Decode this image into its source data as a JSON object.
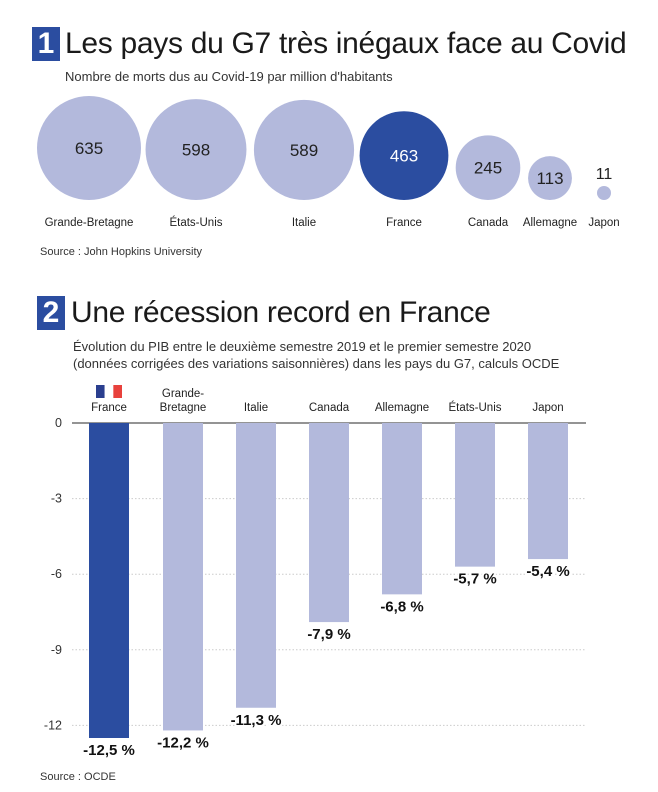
{
  "section1": {
    "number": "1",
    "title": "Les pays du G7 très inégaux face au Covid",
    "subtitle": "Nombre de morts dus au Covid-19 par million d'habitants",
    "source": "Source : John Hopkins University"
  },
  "section2": {
    "number": "2",
    "title": "Une récession record en France",
    "subtitle_line1": "Évolution du PIB entre le deuxième semestre 2019 et le premier semestre 2020",
    "subtitle_line2": "(données corrigées des variations saisonnières) dans les pays du G7, calculs OCDE",
    "source": "Source : OCDE"
  },
  "colors": {
    "highlight": "#2b4da0",
    "default": "#b3b9dc",
    "gridline": "#cccccc",
    "axis": "#555555",
    "flag_blue": "#2a3f8f",
    "flag_red": "#e8413c"
  },
  "chart_data": [
    {
      "type": "bubble",
      "title": "Les pays du G7 très inégaux face au Covid",
      "subtitle": "Nombre de morts dus au Covid-19 par million d'habitants",
      "categories": [
        "Grande-Bretagne",
        "États-Unis",
        "Italie",
        "France",
        "Canada",
        "Allemagne",
        "Japon"
      ],
      "values": [
        635,
        598,
        589,
        463,
        245,
        113,
        11
      ],
      "value_labels": [
        "635",
        "598",
        "589",
        "463",
        "245",
        "113",
        "11"
      ],
      "highlight": "France"
    },
    {
      "type": "bar",
      "title": "Une récession record en France",
      "categories": [
        "France",
        "Grande-Bretagne",
        "Italie",
        "Canada",
        "Allemagne",
        "États-Unis",
        "Japon"
      ],
      "category_labels": [
        [
          "France"
        ],
        [
          "Grande-",
          "Bretagne"
        ],
        [
          "Italie"
        ],
        [
          "Canada"
        ],
        [
          "Allemagne"
        ],
        [
          "États-Unis"
        ],
        [
          "Japon"
        ]
      ],
      "values": [
        -12.5,
        -12.2,
        -11.3,
        -7.9,
        -6.8,
        -5.7,
        -5.4
      ],
      "value_labels": [
        "-12,5 %",
        "-12,2 %",
        "-11,3 %",
        "-7,9 %",
        "-6,8 %",
        "-5,7 %",
        "-5,4 %"
      ],
      "ylim": [
        -12.5,
        0
      ],
      "yticks": [
        0,
        -3,
        -6,
        -9,
        -12
      ],
      "ytick_labels": [
        "0",
        "-3",
        "-6",
        "-9",
        "-12"
      ],
      "grid": true,
      "highlight": "France"
    }
  ]
}
